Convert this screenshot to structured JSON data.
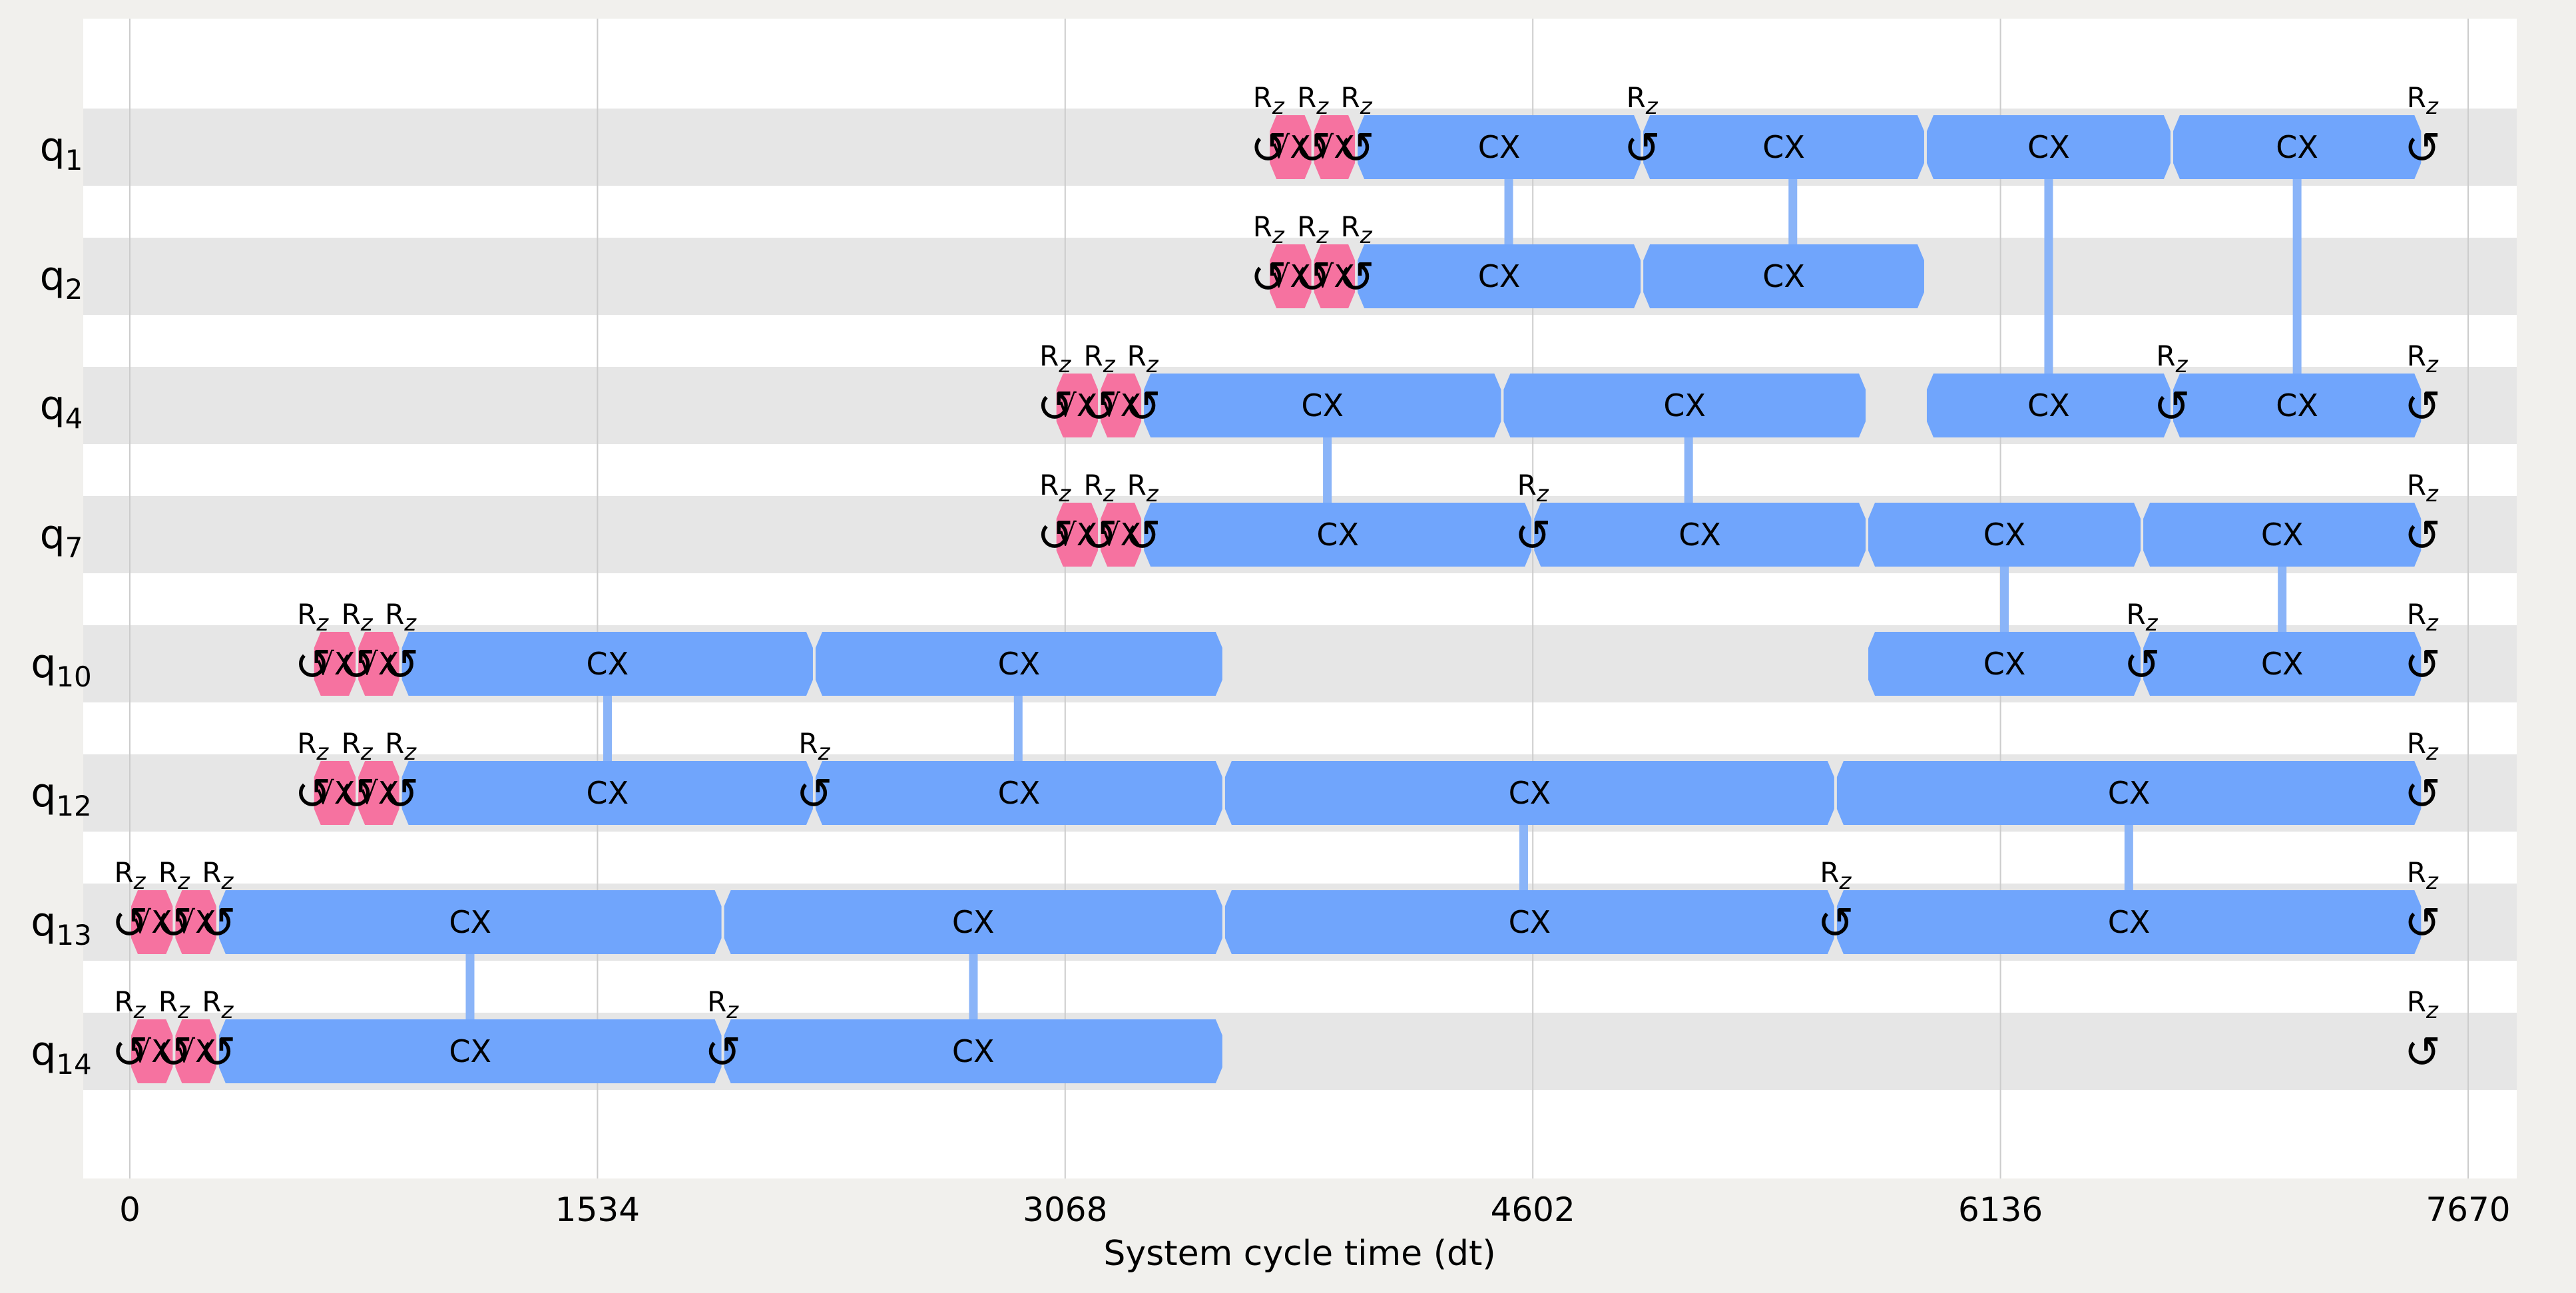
{
  "chart_data": {
    "type": "timeline",
    "title": "",
    "xlabel": "System cycle time (dt)",
    "xlim": [
      0,
      7670
    ],
    "xticks": [
      0,
      1534,
      3068,
      4602,
      6136,
      7670
    ],
    "grid": true,
    "qubits": [
      {
        "name": "q",
        "sub": "1"
      },
      {
        "name": "q",
        "sub": "2"
      },
      {
        "name": "q",
        "sub": "4"
      },
      {
        "name": "q",
        "sub": "7"
      },
      {
        "name": "q",
        "sub": "10"
      },
      {
        "name": "q",
        "sub": "12"
      },
      {
        "name": "q",
        "sub": "13"
      },
      {
        "name": "q",
        "sub": "14"
      }
    ],
    "rz_label": {
      "main": "R",
      "sub": "z"
    },
    "rz_symbol": "↺",
    "sx_label": "√X",
    "cx_label": "CX",
    "colors": {
      "sx": "#f672a0",
      "cx": "#70a5fc",
      "link": "#8ab4f8",
      "band": "#e6e6e6",
      "plot_bg": "#ffffff",
      "grid": "#cccccc"
    },
    "rz": [
      {
        "q": 0,
        "t": 3735
      },
      {
        "q": 0,
        "t": 3880
      },
      {
        "q": 0,
        "t": 4023
      },
      {
        "q": 0,
        "t": 4960
      },
      {
        "q": 0,
        "t": 7520
      },
      {
        "q": 1,
        "t": 3735
      },
      {
        "q": 1,
        "t": 3880
      },
      {
        "q": 1,
        "t": 4023
      },
      {
        "q": 2,
        "t": 3035
      },
      {
        "q": 2,
        "t": 3180
      },
      {
        "q": 2,
        "t": 3322
      },
      {
        "q": 2,
        "t": 6698
      },
      {
        "q": 2,
        "t": 7520
      },
      {
        "q": 3,
        "t": 3035
      },
      {
        "q": 3,
        "t": 3180
      },
      {
        "q": 3,
        "t": 3322
      },
      {
        "q": 3,
        "t": 4602
      },
      {
        "q": 3,
        "t": 7520
      },
      {
        "q": 4,
        "t": 600
      },
      {
        "q": 4,
        "t": 745
      },
      {
        "q": 4,
        "t": 888
      },
      {
        "q": 4,
        "t": 6600
      },
      {
        "q": 4,
        "t": 7520
      },
      {
        "q": 5,
        "t": 600
      },
      {
        "q": 5,
        "t": 745
      },
      {
        "q": 5,
        "t": 888
      },
      {
        "q": 5,
        "t": 2245
      },
      {
        "q": 5,
        "t": 7520
      },
      {
        "q": 6,
        "t": 0
      },
      {
        "q": 6,
        "t": 145
      },
      {
        "q": 6,
        "t": 288
      },
      {
        "q": 6,
        "t": 5595
      },
      {
        "q": 6,
        "t": 7520
      },
      {
        "q": 7,
        "t": 0
      },
      {
        "q": 7,
        "t": 145
      },
      {
        "q": 7,
        "t": 288
      },
      {
        "q": 7,
        "t": 1945
      },
      {
        "q": 7,
        "t": 7520
      }
    ],
    "sx": [
      {
        "q": 0,
        "start": 3735,
        "end": 3880
      },
      {
        "q": 0,
        "start": 3880,
        "end": 4023
      },
      {
        "q": 1,
        "start": 3735,
        "end": 3880
      },
      {
        "q": 1,
        "start": 3880,
        "end": 4023
      },
      {
        "q": 2,
        "start": 3035,
        "end": 3180
      },
      {
        "q": 2,
        "start": 3180,
        "end": 3322
      },
      {
        "q": 3,
        "start": 3035,
        "end": 3180
      },
      {
        "q": 3,
        "start": 3180,
        "end": 3322
      },
      {
        "q": 4,
        "start": 600,
        "end": 745
      },
      {
        "q": 4,
        "start": 745,
        "end": 888
      },
      {
        "q": 5,
        "start": 600,
        "end": 745
      },
      {
        "q": 5,
        "start": 745,
        "end": 888
      },
      {
        "q": 6,
        "start": 0,
        "end": 145
      },
      {
        "q": 6,
        "start": 145,
        "end": 288
      },
      {
        "q": 7,
        "start": 0,
        "end": 145
      },
      {
        "q": 7,
        "start": 145,
        "end": 288
      }
    ],
    "cx": [
      {
        "q": 0,
        "start": 4023,
        "end": 4960
      },
      {
        "q": 0,
        "start": 4960,
        "end": 5890
      },
      {
        "q": 0,
        "start": 5890,
        "end": 6698
      },
      {
        "q": 0,
        "start": 6698,
        "end": 7520
      },
      {
        "q": 1,
        "start": 4023,
        "end": 4960
      },
      {
        "q": 1,
        "start": 4960,
        "end": 5890
      },
      {
        "q": 2,
        "start": 3322,
        "end": 4502
      },
      {
        "q": 2,
        "start": 4502,
        "end": 5698
      },
      {
        "q": 2,
        "start": 5890,
        "end": 6698
      },
      {
        "q": 2,
        "start": 6698,
        "end": 7520
      },
      {
        "q": 3,
        "start": 3322,
        "end": 4602
      },
      {
        "q": 3,
        "start": 4602,
        "end": 5698
      },
      {
        "q": 3,
        "start": 5698,
        "end": 6600
      },
      {
        "q": 3,
        "start": 6600,
        "end": 7520
      },
      {
        "q": 4,
        "start": 888,
        "end": 2245
      },
      {
        "q": 4,
        "start": 2245,
        "end": 3588
      },
      {
        "q": 4,
        "start": 5698,
        "end": 6600
      },
      {
        "q": 4,
        "start": 6600,
        "end": 7520
      },
      {
        "q": 5,
        "start": 888,
        "end": 2245
      },
      {
        "q": 5,
        "start": 2245,
        "end": 3588
      },
      {
        "q": 5,
        "start": 3588,
        "end": 5595
      },
      {
        "q": 5,
        "start": 5595,
        "end": 7520
      },
      {
        "q": 6,
        "start": 288,
        "end": 1945
      },
      {
        "q": 6,
        "start": 1945,
        "end": 3588
      },
      {
        "q": 6,
        "start": 3588,
        "end": 5595
      },
      {
        "q": 6,
        "start": 5595,
        "end": 7520
      },
      {
        "q": 7,
        "start": 288,
        "end": 1945
      },
      {
        "q": 7,
        "start": 1945,
        "end": 3588
      }
    ],
    "links": [
      {
        "t": 4523,
        "q1": 0,
        "q2": 1
      },
      {
        "t": 5455,
        "q1": 0,
        "q2": 1
      },
      {
        "t": 6294,
        "q1": 0,
        "q2": 2
      },
      {
        "t": 7109,
        "q1": 0,
        "q2": 2
      },
      {
        "t": 3928,
        "q1": 2,
        "q2": 3
      },
      {
        "t": 5113,
        "q1": 2,
        "q2": 3
      },
      {
        "t": 6149,
        "q1": 3,
        "q2": 4
      },
      {
        "t": 7060,
        "q1": 3,
        "q2": 4
      },
      {
        "t": 1567,
        "q1": 4,
        "q2": 5
      },
      {
        "t": 2914,
        "q1": 4,
        "q2": 5
      },
      {
        "t": 4572,
        "q1": 5,
        "q2": 6
      },
      {
        "t": 6557,
        "q1": 5,
        "q2": 6
      },
      {
        "t": 1116,
        "q1": 6,
        "q2": 7
      },
      {
        "t": 2767,
        "q1": 6,
        "q2": 7
      }
    ]
  }
}
